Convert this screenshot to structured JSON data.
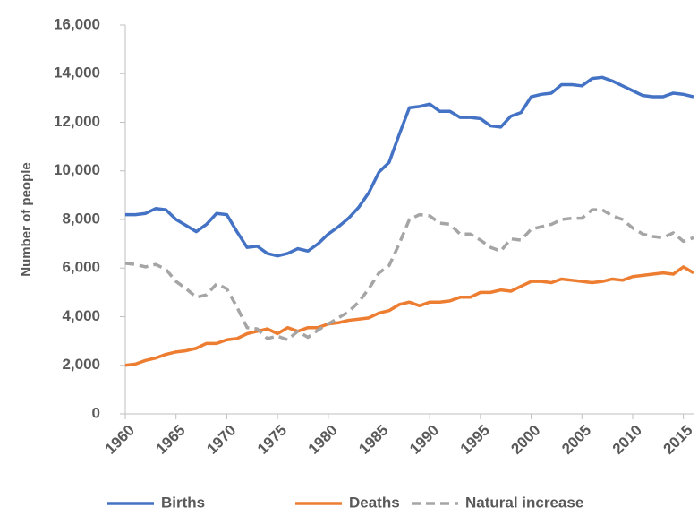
{
  "chart_data": {
    "type": "line",
    "y_label": "Number of people",
    "x": [
      1960,
      1961,
      1962,
      1963,
      1964,
      1965,
      1966,
      1967,
      1968,
      1969,
      1970,
      1971,
      1972,
      1973,
      1974,
      1975,
      1976,
      1977,
      1978,
      1979,
      1980,
      1981,
      1982,
      1983,
      1984,
      1985,
      1986,
      1987,
      1988,
      1989,
      1990,
      1991,
      1992,
      1993,
      1994,
      1995,
      1996,
      1997,
      1998,
      1999,
      2000,
      2001,
      2002,
      2003,
      2004,
      2005,
      2006,
      2007,
      2008,
      2009,
      2010,
      2011,
      2012,
      2013,
      2014,
      2015,
      2016
    ],
    "xlim": [
      1960,
      2016
    ],
    "xticks": [
      1960,
      1965,
      1970,
      1975,
      1980,
      1985,
      1990,
      1995,
      2000,
      2005,
      2010,
      2015
    ],
    "ylim": [
      0,
      16000
    ],
    "yticks": [
      0,
      {
        "value": 2000,
        "label": "2,000"
      },
      {
        "value": 4000,
        "label": "4,000"
      },
      {
        "value": 6000,
        "label": "6,000"
      },
      {
        "value": 8000,
        "label": "8,000"
      },
      {
        "value": 10000,
        "label": "10,000"
      },
      {
        "value": 12000,
        "label": "12,000"
      },
      {
        "value": 14000,
        "label": "14,000"
      },
      {
        "value": 16000,
        "label": "16,000"
      }
    ],
    "grid": false,
    "legend": "bottom",
    "series": [
      {
        "name": "Births",
        "color": "#4472c4",
        "dash": false,
        "values": [
          8200,
          8200,
          8250,
          8450,
          8400,
          8000,
          7750,
          7500,
          7800,
          8250,
          8200,
          7500,
          6850,
          6900,
          6600,
          6500,
          6600,
          6800,
          6700,
          7000,
          7400,
          7700,
          8050,
          8500,
          9100,
          9950,
          10350,
          11500,
          12600,
          12650,
          12750,
          12450,
          12450,
          12200,
          12200,
          12150,
          11850,
          11800,
          12250,
          12400,
          13050,
          13150,
          13200,
          13550,
          13550,
          13500,
          13800,
          13850,
          13700,
          13500,
          13300,
          13100,
          13050,
          13050,
          13200,
          13150,
          13050
        ]
      },
      {
        "name": "Deaths",
        "color": "#ed7d31",
        "dash": false,
        "values": [
          2000,
          2050,
          2200,
          2300,
          2450,
          2550,
          2600,
          2700,
          2900,
          2900,
          3050,
          3100,
          3300,
          3400,
          3500,
          3300,
          3550,
          3400,
          3550,
          3550,
          3700,
          3750,
          3850,
          3900,
          3950,
          4150,
          4250,
          4500,
          4600,
          4450,
          4600,
          4600,
          4650,
          4800,
          4800,
          5000,
          5000,
          5100,
          5050,
          5250,
          5450,
          5450,
          5400,
          5550,
          5500,
          5450,
          5400,
          5450,
          5550,
          5500,
          5650,
          5700,
          5750,
          5800,
          5750,
          6050,
          5800
        ]
      },
      {
        "name": "Natural increase",
        "color": "#a5a5a5",
        "dash": true,
        "values": [
          6200,
          6150,
          6050,
          6150,
          5950,
          5450,
          5150,
          4800,
          4900,
          5350,
          5150,
          4400,
          3550,
          3500,
          3100,
          3200,
          3050,
          3400,
          3150,
          3450,
          3700,
          3950,
          4200,
          4600,
          5150,
          5800,
          6100,
          7000,
          8000,
          8200,
          8150,
          7850,
          7800,
          7400,
          7400,
          7150,
          6850,
          6700,
          7200,
          7150,
          7600,
          7700,
          7800,
          8000,
          8050,
          8050,
          8400,
          8400,
          8150,
          8000,
          7650,
          7400,
          7300,
          7250,
          7450,
          7100,
          7250
        ]
      }
    ]
  }
}
